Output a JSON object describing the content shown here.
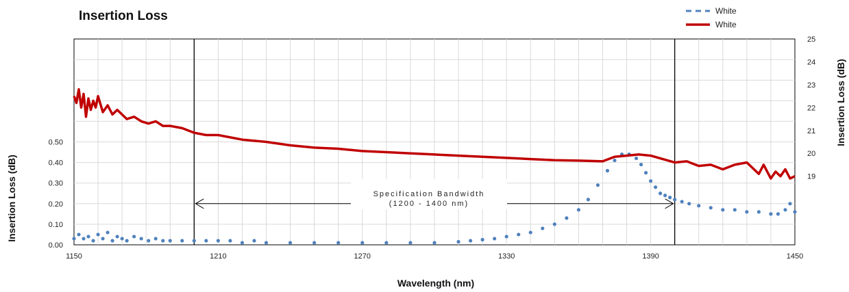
{
  "chart_data": {
    "type": "line",
    "title": "Insertion Loss",
    "xlabel": "Wavelength (nm)",
    "ylabel_left": "Insertion Loss (dB)",
    "ylabel_right": "Insertion Loss (dB)",
    "xlim": [
      1150,
      1450
    ],
    "x_ticks": [
      "1150",
      "1210",
      "1270",
      "1330",
      "1390",
      "1450"
    ],
    "ylim_left": [
      0,
      1.0
    ],
    "y_ticks_left": [
      "0.00",
      "0.10",
      "0.20",
      "0.30",
      "0.40",
      "0.50"
    ],
    "ylim_right": [
      16,
      25
    ],
    "y_ticks_right": [
      "19",
      "20",
      "21",
      "22",
      "23",
      "24",
      "25"
    ],
    "grid": true,
    "legend_position": "top-right",
    "legend": [
      {
        "label": "White",
        "style": "dotted",
        "color": "#4f81bd"
      },
      {
        "label": "White",
        "style": "solid",
        "color": "#c00000"
      }
    ],
    "annotation": {
      "line1": "Specification Bandwidth",
      "line2": "(1200 - 1400 nm)",
      "x_start": 1200,
      "x_end": 1400
    },
    "series": [
      {
        "axis": "left",
        "color": "#4f81bd",
        "style": "dotted",
        "x": [
          1150,
          1152,
          1154,
          1156,
          1158,
          1160,
          1162,
          1164,
          1166,
          1168,
          1170,
          1172,
          1175,
          1178,
          1181,
          1184,
          1187,
          1190,
          1195,
          1200,
          1205,
          1210,
          1215,
          1220,
          1225,
          1230,
          1240,
          1250,
          1260,
          1270,
          1280,
          1290,
          1300,
          1310,
          1315,
          1320,
          1325,
          1330,
          1335,
          1340,
          1345,
          1350,
          1355,
          1360,
          1364,
          1368,
          1372,
          1375,
          1378,
          1381,
          1384,
          1386,
          1388,
          1390,
          1392,
          1394,
          1396,
          1398,
          1400,
          1403,
          1406,
          1410,
          1415,
          1420,
          1425,
          1430,
          1435,
          1440,
          1443,
          1446,
          1448,
          1450
        ],
        "y": [
          0.03,
          0.05,
          0.03,
          0.04,
          0.02,
          0.05,
          0.03,
          0.06,
          0.02,
          0.04,
          0.03,
          0.02,
          0.04,
          0.03,
          0.02,
          0.03,
          0.02,
          0.02,
          0.02,
          0.02,
          0.02,
          0.02,
          0.02,
          0.01,
          0.02,
          0.01,
          0.01,
          0.01,
          0.01,
          0.01,
          0.01,
          0.01,
          0.01,
          0.015,
          0.02,
          0.025,
          0.03,
          0.04,
          0.05,
          0.06,
          0.08,
          0.1,
          0.13,
          0.17,
          0.22,
          0.29,
          0.36,
          0.41,
          0.44,
          0.44,
          0.42,
          0.39,
          0.35,
          0.31,
          0.28,
          0.25,
          0.24,
          0.23,
          0.22,
          0.21,
          0.2,
          0.19,
          0.18,
          0.17,
          0.17,
          0.16,
          0.16,
          0.15,
          0.15,
          0.17,
          0.2,
          0.16
        ]
      },
      {
        "axis": "right",
        "color": "#c00000",
        "style": "solid",
        "x": [
          1150,
          1151,
          1152,
          1153,
          1154,
          1155,
          1156,
          1157,
          1158,
          1159,
          1160,
          1162,
          1164,
          1166,
          1168,
          1170,
          1172,
          1175,
          1178,
          1181,
          1184,
          1187,
          1190,
          1195,
          1200,
          1205,
          1210,
          1220,
          1230,
          1240,
          1250,
          1260,
          1270,
          1280,
          1290,
          1300,
          1310,
          1320,
          1330,
          1340,
          1350,
          1360,
          1370,
          1375,
          1380,
          1385,
          1390,
          1395,
          1400,
          1405,
          1410,
          1415,
          1420,
          1425,
          1430,
          1433,
          1435,
          1437,
          1440,
          1442,
          1444,
          1446,
          1448,
          1450
        ],
        "y": [
          22.5,
          22.2,
          22.8,
          22.0,
          22.6,
          21.6,
          22.4,
          21.9,
          22.3,
          22.0,
          22.5,
          21.8,
          22.1,
          21.7,
          21.9,
          21.7,
          21.5,
          21.6,
          21.4,
          21.3,
          21.4,
          21.2,
          21.2,
          21.1,
          20.9,
          20.8,
          20.8,
          20.6,
          20.5,
          20.35,
          20.25,
          20.2,
          20.1,
          20.05,
          20.0,
          19.95,
          19.9,
          19.85,
          19.8,
          19.75,
          19.7,
          19.68,
          19.65,
          19.85,
          19.9,
          19.95,
          19.9,
          19.75,
          19.6,
          19.65,
          19.45,
          19.5,
          19.3,
          19.5,
          19.6,
          19.3,
          19.1,
          19.5,
          18.9,
          19.2,
          19.0,
          19.3,
          18.9,
          19.0
        ]
      }
    ]
  }
}
